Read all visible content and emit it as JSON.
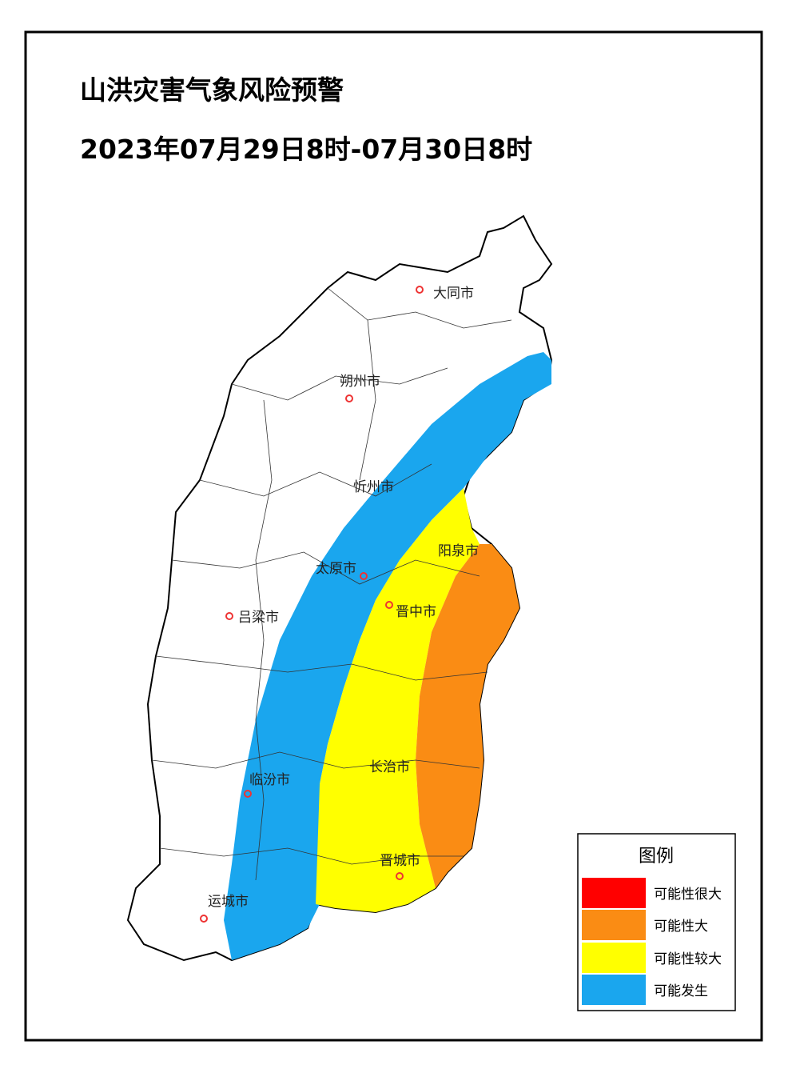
{
  "header": {
    "title": "山洪灾害气象风险预警",
    "subtitle": "2023年07月29日8时-07月30日8时"
  },
  "cities": [
    "大同市",
    "朔州市",
    "忻州市",
    "阳泉市",
    "太原市",
    "晋中市",
    "吕梁市",
    "长治市",
    "临汾市",
    "晋城市",
    "运城市"
  ],
  "legend": {
    "title": "图例",
    "items": [
      {
        "label": "可能性很大",
        "color": "#ff0000"
      },
      {
        "label": "可能性大",
        "color": "#fa8c14"
      },
      {
        "label": "可能性较大",
        "color": "#ffff00"
      },
      {
        "label": "可能发生",
        "color": "#1aa6ee"
      }
    ]
  }
}
